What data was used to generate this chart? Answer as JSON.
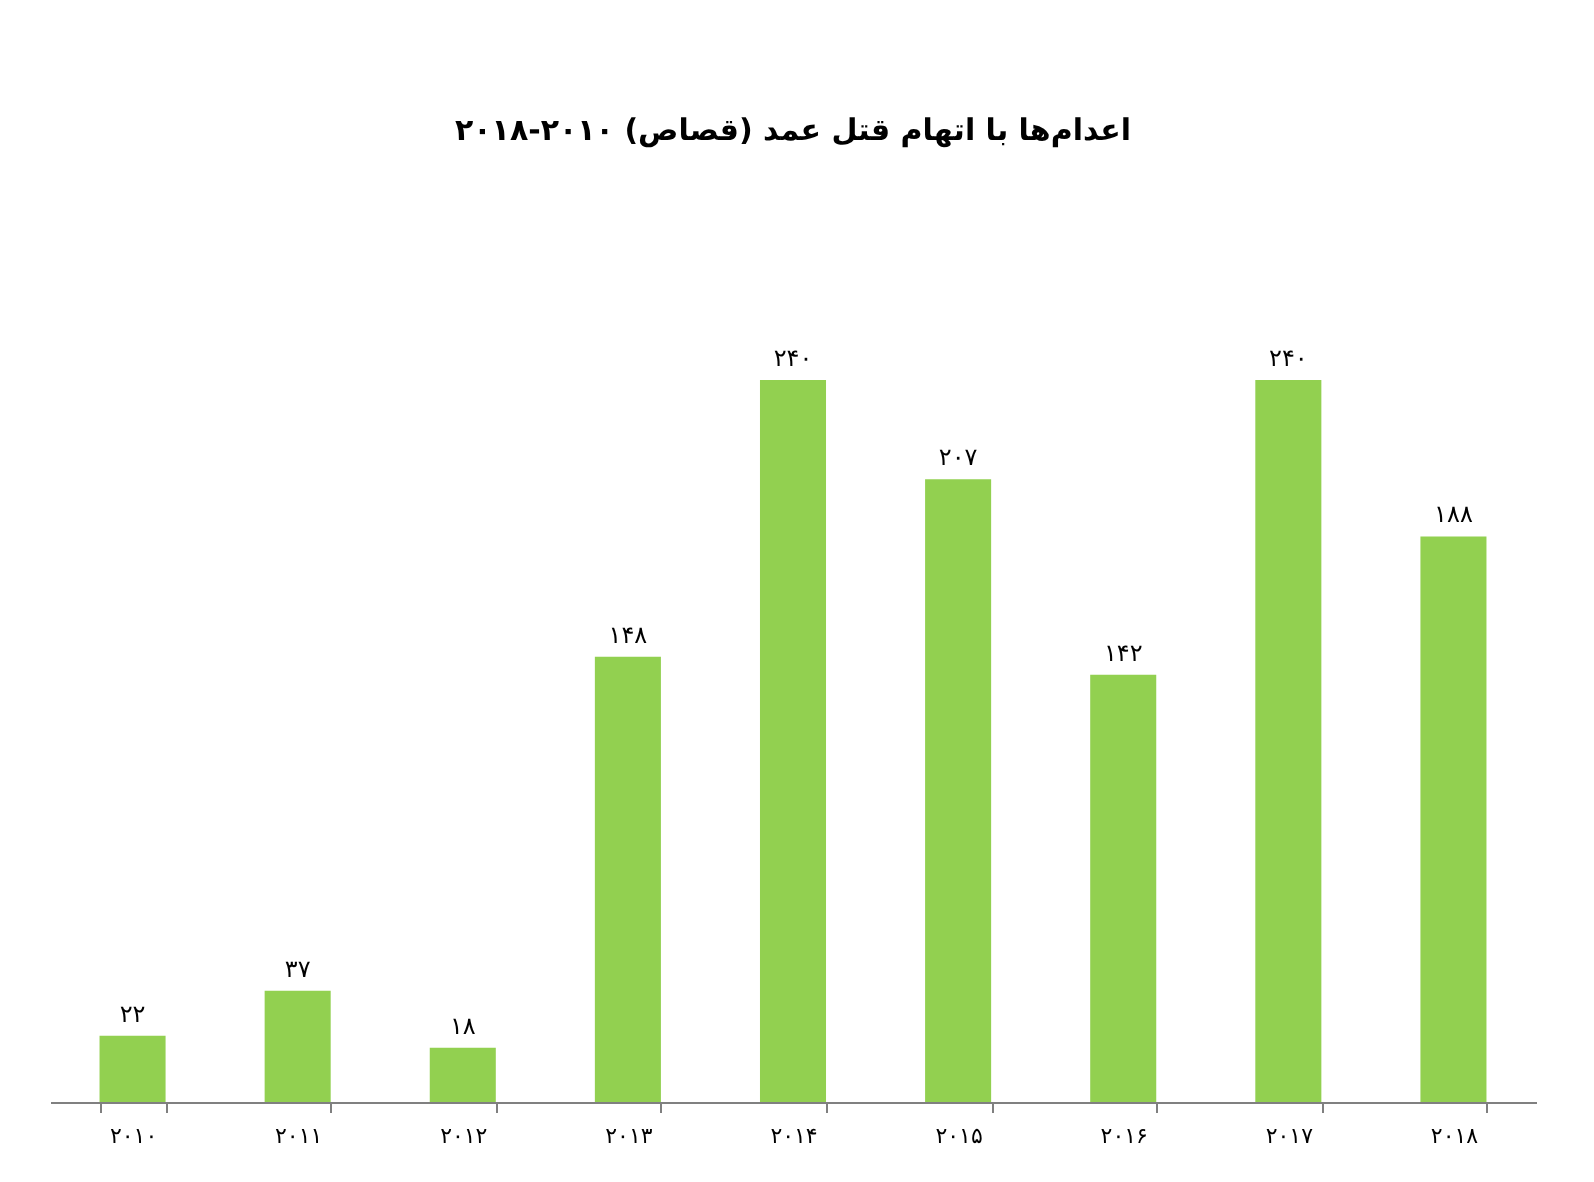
{
  "chart_data": {
    "type": "bar",
    "title": "اعدام‌ها با اتهام قتل عمد (قصاص) ۲۰۱۰-۲۰۱۸",
    "categories": [
      "۲۰۱۰",
      "۲۰۱۱",
      "۲۰۱۲",
      "۲۰۱۳",
      "۲۰۱۴",
      "۲۰۱۵",
      "۲۰۱۶",
      "۲۰۱۷",
      "۲۰۱۸"
    ],
    "values": [
      22,
      37,
      18,
      148,
      240,
      207,
      142,
      240,
      188
    ],
    "value_labels": [
      "۲۲",
      "۳۷",
      "۱۸",
      "۱۴۸",
      "۲۴۰",
      "۲۰۷",
      "۱۴۲",
      "۲۴۰",
      "۱۸۸"
    ],
    "color": "#92d050",
    "grid": false
  }
}
